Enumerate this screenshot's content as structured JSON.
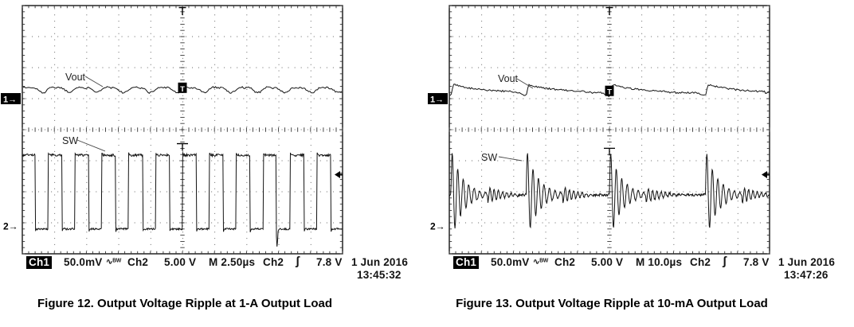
{
  "figures": [
    {
      "caption": "Figure 12. Output Voltage Ripple at 1-A Output Load",
      "trace_labels": {
        "top": "Vout",
        "bottom": "SW"
      },
      "channel_markers": {
        "ch1": "1→",
        "ch2": "2→",
        "trace_point": "T",
        "trigger": "T"
      },
      "readout": {
        "ch1_name": "Ch1",
        "ch1_scale": "50.0mV",
        "ch1_coupling_icon": "∿ᴮᵂ",
        "ch2_name": "Ch2",
        "ch2_scale": "5.00 V",
        "timebase": "M 2.50µs",
        "trig_source": "Ch2",
        "trig_slope_icon": "ʃ",
        "trig_level": "7.8 V",
        "date": "1 Jun 2016",
        "time": "13:45:32"
      }
    },
    {
      "caption": "Figure 13. Output Voltage Ripple at 10-mA Output Load",
      "trace_labels": {
        "top": "Vout",
        "bottom": "SW"
      },
      "channel_markers": {
        "ch1": "1→",
        "ch2": "2→",
        "trace_point": "T",
        "trigger": "T"
      },
      "readout": {
        "ch1_name": "Ch1",
        "ch1_scale": "50.0mV",
        "ch1_coupling_icon": "∿ᴮᵂ",
        "ch2_name": "Ch2",
        "ch2_scale": "5.00 V",
        "timebase": "M 10.0µs",
        "trig_source": "Ch2",
        "trig_slope_icon": "ʃ",
        "trig_level": "7.8 V",
        "date": "1 Jun 2016",
        "time": "13:47:26"
      }
    }
  ],
  "chart_data": [
    {
      "type": "line",
      "instrument": "oscilloscope",
      "title": "Output Voltage Ripple at 1-A Output Load",
      "grid": {
        "x_divisions": 10,
        "y_divisions": 8,
        "style": "dotted"
      },
      "timebase_per_div": "2.50 µs",
      "trigger": {
        "source": "Ch2",
        "slope": "rising",
        "level": "7.8 V",
        "position_div": 5,
        "level_div_from_top": 5.45,
        "time_mark_div_from_top": 4.45
      },
      "ch1_indicator_div_from_top": 3.0,
      "ch2_indicator_div_from_top": 7.1,
      "series": [
        {
          "name": "Vout",
          "channel": 1,
          "scale_per_div": "50.0 mV",
          "coupling": "AC, bandwidth limited",
          "shape": "ripple",
          "center_div_from_top": 2.7,
          "ripple_pp_div": 0.16,
          "ripple_pp_approx": "8 mV",
          "period_div": 0.84,
          "period_approx": "2.1 µs"
        },
        {
          "name": "SW",
          "channel": 2,
          "scale_per_div": "5.00 V",
          "shape": "square",
          "high_div_from_top": 4.82,
          "low_div_from_top": 7.2,
          "amplitude_approx": "12 V",
          "period_div": 0.84,
          "period_approx": "2.1 µs",
          "duty_high": 0.52
        }
      ]
    },
    {
      "type": "line",
      "instrument": "oscilloscope",
      "title": "Output Voltage Ripple at 10-mA Output Load",
      "grid": {
        "x_divisions": 10,
        "y_divisions": 8,
        "style": "dotted"
      },
      "timebase_per_div": "10.0 µs",
      "trigger": {
        "source": "Ch2",
        "slope": "rising",
        "level": "7.8 V",
        "position_div": 5,
        "level_div_from_top": 5.45,
        "time_mark_div_from_top": 4.6
      },
      "ch1_indicator_div_from_top": 3.0,
      "ch2_indicator_div_from_top": 7.1,
      "series": [
        {
          "name": "Vout",
          "channel": 1,
          "scale_per_div": "50.0 mV",
          "coupling": "AC, bandwidth limited",
          "shape": "pfm-ripple",
          "center_div_from_top": 2.8,
          "jump_pp_div": 0.33,
          "burst_positions_div": [
            0.05,
            2.4,
            5.0,
            8.0
          ]
        },
        {
          "name": "SW",
          "channel": 2,
          "scale_per_div": "5.00 V",
          "shape": "burst-ringing",
          "baseline_div_from_top": 6.1,
          "burst_amp_div": 1.5,
          "burst_width_div": 1.1,
          "burst_positions_div": [
            0.05,
            2.4,
            5.0,
            8.0
          ]
        }
      ]
    }
  ]
}
